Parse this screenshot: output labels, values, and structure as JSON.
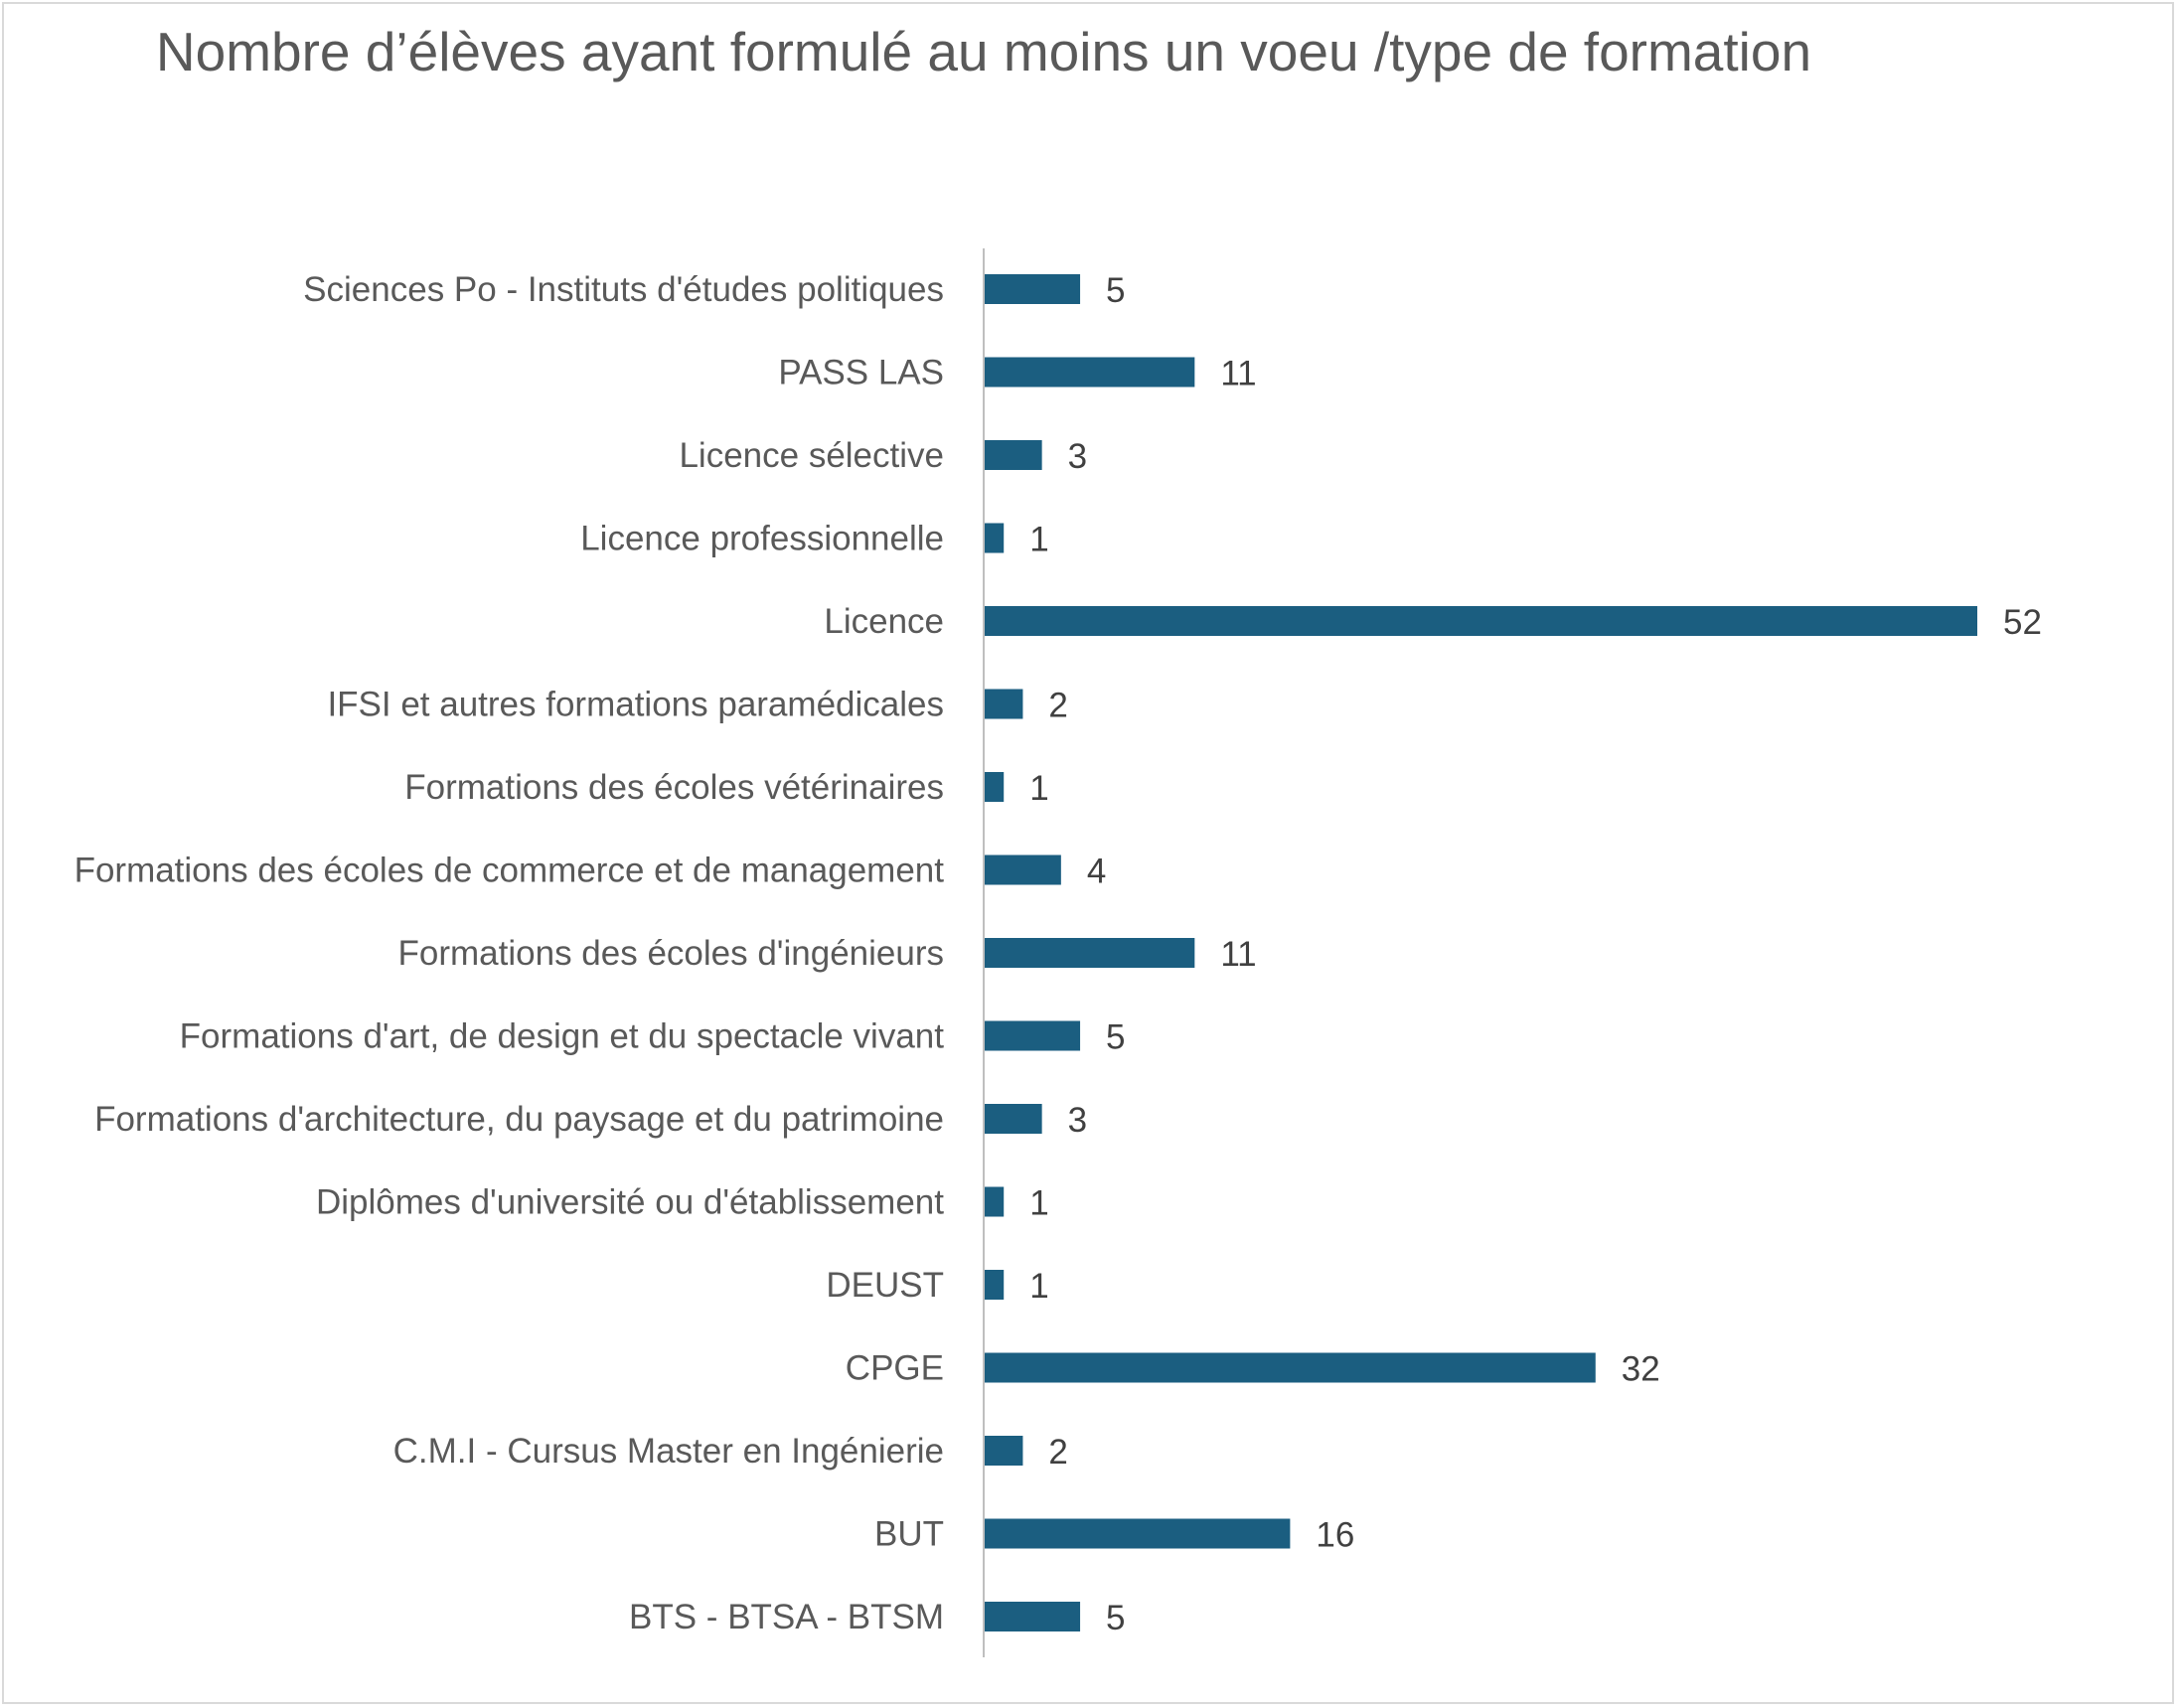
{
  "chart_data": {
    "type": "bar",
    "orientation": "horizontal",
    "title": "Nombre d’élèves ayant formulé au moins un voeu /type de formation",
    "categories": [
      "Sciences Po - Instituts d'études politiques",
      "PASS LAS",
      "Licence sélective",
      "Licence professionnelle",
      "Licence",
      "IFSI et autres formations paramédicales",
      "Formations des écoles vétérinaires",
      "Formations des écoles de commerce et de management",
      "Formations des écoles d'ingénieurs",
      "Formations d'art, de design et du spectacle vivant",
      "Formations d'architecture, du paysage et du patrimoine",
      "Diplômes d'université ou d'établissement",
      "DEUST",
      "CPGE",
      "C.M.I - Cursus Master en Ingénierie",
      "BUT",
      "BTS - BTSA - BTSM"
    ],
    "values": [
      5,
      11,
      3,
      1,
      52,
      2,
      1,
      4,
      11,
      5,
      3,
      1,
      1,
      32,
      2,
      16,
      5
    ],
    "xlabel": "",
    "ylabel": "",
    "xlim": [
      0,
      52
    ],
    "grid": false,
    "legend": "none",
    "data_labels": true,
    "colors": {
      "bar": "#1b5e80",
      "axis": "#bfbfbf",
      "title": "#595959",
      "category_text": "#595959",
      "value_text": "#404040",
      "border": "#d9d9d9"
    }
  }
}
